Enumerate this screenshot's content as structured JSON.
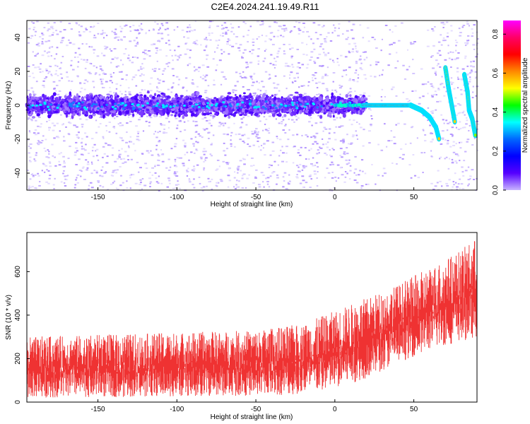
{
  "title": "C2E4.2024.241.19.49.R11",
  "colors": {
    "snr_fill": "#ef3232",
    "spectrogram_background": "#ffffff",
    "colormap": [
      "#ff00ff",
      "#ff0066",
      "#ff0000",
      "#ff8800",
      "#ffff00",
      "#00ff00",
      "#00ffff",
      "#0066ff",
      "#0000ff",
      "#5500ff",
      "#c8b4ff"
    ]
  },
  "chart_data": [
    {
      "type": "heatmap",
      "title": "C2E4.2024.241.19.49.R11",
      "xlabel": "Height of straight line (km)",
      "ylabel": "Frequency (Hz)",
      "xlim": [
        -195,
        90
      ],
      "ylim": [
        -50,
        50
      ],
      "xticks": [
        -150,
        -100,
        -50,
        0,
        50
      ],
      "yticks": [
        -40,
        -20,
        0,
        20,
        40
      ],
      "colorbar": {
        "label": "Normalized spectral amplitude",
        "range": [
          0,
          0.87
        ],
        "ticks": [
          0.0,
          0.2,
          0.4,
          0.6,
          0.8
        ]
      },
      "features": {
        "noise_band_center_hz": 0,
        "strong_line_segment_km": [
          18,
          48
        ],
        "curve_points": [
          {
            "x": 48,
            "y": 0
          },
          {
            "x": 55,
            "y": -3
          },
          {
            "x": 60,
            "y": -7
          },
          {
            "x": 64,
            "y": -13
          },
          {
            "x": 66,
            "y": -20
          }
        ],
        "hook_1": [
          {
            "x": 70,
            "y": 22
          },
          {
            "x": 72,
            "y": 10
          },
          {
            "x": 74,
            "y": 0
          },
          {
            "x": 76,
            "y": -10
          }
        ],
        "hook_2": [
          {
            "x": 82,
            "y": 18
          },
          {
            "x": 84,
            "y": 8
          },
          {
            "x": 85,
            "y": -3
          },
          {
            "x": 87,
            "y": -8
          },
          {
            "x": 89,
            "y": -18
          }
        ]
      }
    },
    {
      "type": "area",
      "xlabel": "Height of straight line (km)",
      "ylabel": "SNR (10 * v/v)",
      "xlim": [
        -195,
        90
      ],
      "ylim": [
        0,
        780
      ],
      "xticks": [
        -150,
        -100,
        -50,
        0,
        50
      ],
      "yticks": [
        0,
        200,
        400,
        600
      ],
      "trend": {
        "x": [
          -195,
          -100,
          -50,
          -20,
          0,
          20,
          40,
          60,
          80,
          90
        ],
        "lower": [
          20,
          25,
          30,
          35,
          60,
          110,
          180,
          240,
          280,
          300
        ],
        "upper": [
          300,
          320,
          330,
          360,
          420,
          480,
          540,
          620,
          700,
          760
        ]
      }
    }
  ]
}
